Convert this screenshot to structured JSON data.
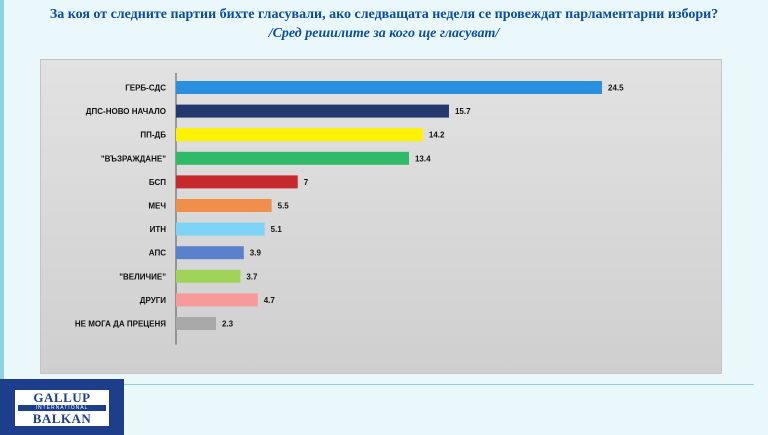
{
  "title": {
    "line1": "За коя от следните партии бихте  гласували,  ако следващата неделя се провеждат парламентарни избори?",
    "line2": "/Сред решилите за кого ще гласуват/"
  },
  "logo": {
    "top": "GALLUP",
    "middle": "INTERNATIONAL",
    "bottom": "BALKAN"
  },
  "colors": {
    "slide_background": "#eaf8fb",
    "title": "#0a4da3",
    "logo": "#1d3e8a"
  },
  "chart_data": {
    "type": "bar",
    "orientation": "horizontal",
    "categories": [
      "ГЕРБ-СДС",
      "ДПС-НОВО НАЧАЛО",
      "ПП-ДБ",
      "\"ВЪЗРАЖДАНЕ\"",
      "БСП",
      "МЕЧ",
      "ИТН",
      "АПС",
      "\"ВЕЛИЧИЕ\"",
      "ДРУГИ",
      "НЕ МОГА ДА ПРЕЦЕНЯ"
    ],
    "values": [
      24.5,
      15.7,
      14.2,
      13.4,
      7,
      5.5,
      5.1,
      3.9,
      3.7,
      4.7,
      2.3
    ],
    "value_labels": [
      "24.5",
      "15.7",
      "14.2",
      "13.4",
      "7",
      "5.5",
      "5.1",
      "3.9",
      "3.7",
      "4.7",
      "2.3"
    ],
    "colors": [
      "#2b8fe0",
      "#22386f",
      "#fff200",
      "#2fba6a",
      "#c6282d",
      "#ef8f4a",
      "#7fd3f7",
      "#5a82cc",
      "#9fd35a",
      "#f79a9a",
      "#a9a9a9"
    ],
    "xlim": [
      0,
      24.5
    ],
    "grid": false,
    "legend": "none"
  }
}
